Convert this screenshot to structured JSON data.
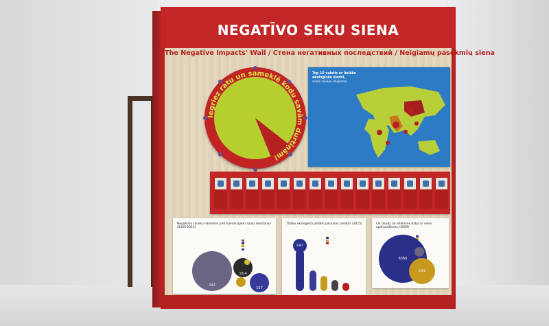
{
  "wall": {
    "title": "NEGATĪVO SEKU SIENA",
    "subtitle": "The Negative Impacts' Wall  /  Стена негативных последствий  /  Neigiamų pasekmių siena"
  },
  "wheel": {
    "caption": "Iegriez ratu un sameklē kodu savām durtiņām!"
  },
  "map": {
    "caption_bold": "Top 10 valstis ar lielāko ekoloģisko slodzi,",
    "caption_line2": "skaitu cilvēku (miljonos)"
  },
  "panels": {
    "left": {
      "title": "Negatīvās cilvēku ietekmes pret kalnainajiem sauļu lietošanas (2009-2015)",
      "values": [
        "242",
        "16,4",
        "157"
      ]
    },
    "middle": {
      "title": "Tālāko ekoloģiskā pēdām pasaules pilsētās (2015)",
      "values": [
        "2467"
      ]
    },
    "right": {
      "title": "Cik daudz no ietekmes dabu ar vides apdraudējumu (2009)",
      "values": [
        "6366",
        "2500"
      ]
    }
  },
  "colors": {
    "wall_red": "#c32626",
    "wheel_green": "#b7cf2e",
    "map_blue": "#2d7bc4",
    "wood": "#e3d6bd"
  }
}
